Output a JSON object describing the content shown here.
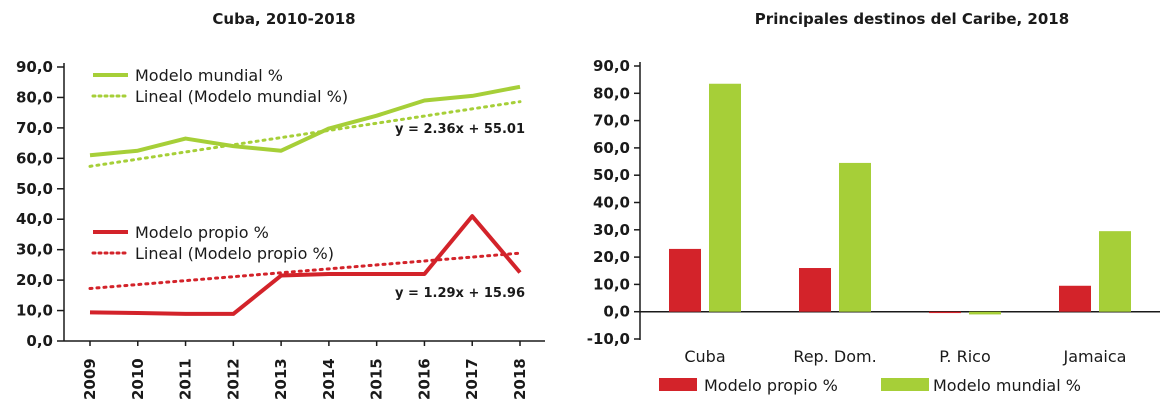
{
  "colors": {
    "mundial": "#a6cf38",
    "propio": "#d3232a",
    "axis": "#1a1a1a"
  },
  "chart_data": [
    {
      "type": "line",
      "title": "Cuba, 2010-2018",
      "x": [
        "2009",
        "2010",
        "2011",
        "2012",
        "2013",
        "2014",
        "2015",
        "2016",
        "2017",
        "2018"
      ],
      "ylim": [
        0,
        90
      ],
      "yticks": [
        "0,0",
        "10,0",
        "20,0",
        "30,0",
        "40,0",
        "50,0",
        "60,0",
        "70,0",
        "80,0",
        "90,0"
      ],
      "grid": false,
      "legend_position": "inside-plot",
      "series": [
        {
          "name": "Modelo mundial %",
          "values": [
            61.0,
            62.5,
            66.5,
            64.0,
            62.5,
            69.8,
            74.0,
            79.0,
            80.5,
            83.5
          ]
        },
        {
          "name": "Lineal (Modelo mundial %)",
          "trendline": true,
          "slope": 2.36,
          "intercept": 55.01,
          "equation": "y = 2.36x + 55.01"
        },
        {
          "name": "Modelo propio %",
          "values": [
            9.4,
            9.2,
            8.9,
            8.9,
            21.5,
            22.0,
            22.0,
            22.0,
            41.0,
            22.5
          ]
        },
        {
          "name": "Lineal (Modelo propio %)",
          "trendline": true,
          "slope": 1.29,
          "intercept": 15.96,
          "equation": "y = 1.29x + 15.96"
        }
      ]
    },
    {
      "type": "bar",
      "title": "Principales destinos del Caribe, 2018",
      "categories": [
        "Cuba",
        "Rep. Dom.",
        "P. Rico",
        "Jamaica"
      ],
      "ylim": [
        -10,
        90
      ],
      "yticks": [
        "-10,0",
        "0,0",
        "10,0",
        "20,0",
        "30,0",
        "40,0",
        "50,0",
        "60,0",
        "70,0",
        "80,0",
        "90,0"
      ],
      "grid": false,
      "legend_position": "bottom",
      "series": [
        {
          "name": "Modelo propio %",
          "values": [
            23.0,
            16.0,
            -0.5,
            9.5
          ]
        },
        {
          "name": "Modelo mundial %",
          "values": [
            83.5,
            54.5,
            -1.0,
            29.5
          ]
        }
      ]
    }
  ]
}
